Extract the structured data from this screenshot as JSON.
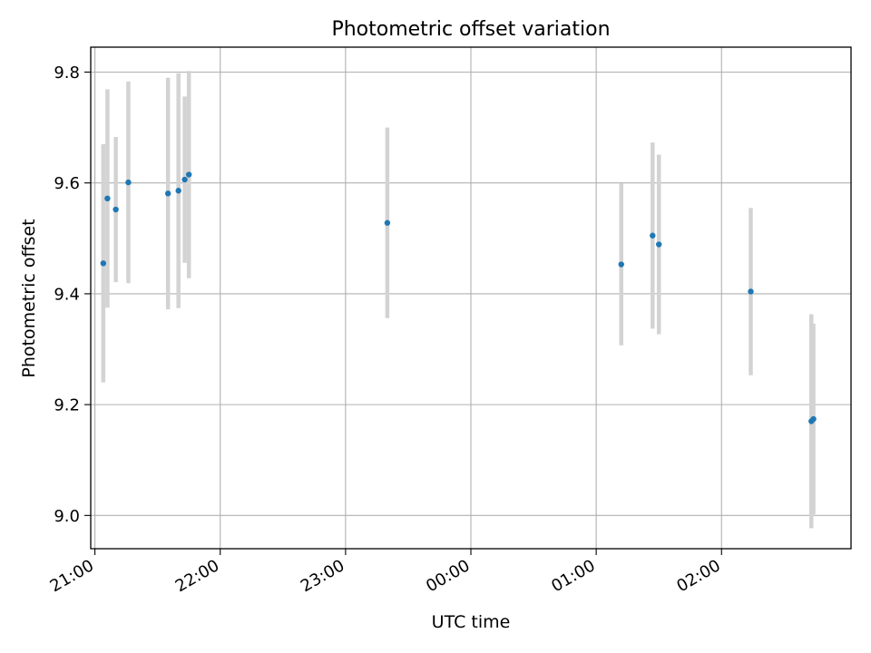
{
  "chart_data": {
    "type": "scatter",
    "title": "Photometric offset variation",
    "xlabel": "UTC time",
    "ylabel": "Photometric offset",
    "x_axis": "time",
    "xlim": [
      "20:58",
      "27:02"
    ],
    "ylim": [
      8.94,
      9.845
    ],
    "grid": true,
    "xticks": [
      {
        "t": "21:00",
        "label": "21:00"
      },
      {
        "t": "22:00",
        "label": "22:00"
      },
      {
        "t": "23:00",
        "label": "23:00"
      },
      {
        "t": "24:00",
        "label": "00:00"
      },
      {
        "t": "25:00",
        "label": "01:00"
      },
      {
        "t": "26:00",
        "label": "02:00"
      }
    ],
    "yticks": [
      9.0,
      9.2,
      9.4,
      9.6,
      9.8
    ],
    "ytick_labels": [
      "9.0",
      "9.2",
      "9.4",
      "9.6",
      "9.8"
    ],
    "points_color": "#1f77b4",
    "errorbar_color": "#d3d3d3",
    "points": [
      {
        "t": "21:04",
        "y": 9.455,
        "err": 0.215
      },
      {
        "t": "21:06",
        "y": 9.572,
        "err": 0.197
      },
      {
        "t": "21:10",
        "y": 9.552,
        "err": 0.131
      },
      {
        "t": "21:16",
        "y": 9.601,
        "err": 0.182
      },
      {
        "t": "21:35",
        "y": 9.581,
        "err": 0.209
      },
      {
        "t": "21:40",
        "y": 9.586,
        "err": 0.212
      },
      {
        "t": "21:43",
        "y": 9.606,
        "err": 0.15
      },
      {
        "t": "21:45",
        "y": 9.615,
        "err": 0.187
      },
      {
        "t": "23:20",
        "y": 9.528,
        "err": 0.172
      },
      {
        "t": "25:12",
        "y": 9.453,
        "err": 0.146
      },
      {
        "t": "25:27",
        "y": 9.505,
        "err": 0.168
      },
      {
        "t": "25:30",
        "y": 9.489,
        "err": 0.162
      },
      {
        "t": "26:14",
        "y": 9.404,
        "err": 0.151
      },
      {
        "t": "26:43",
        "y": 9.17,
        "err": 0.193
      },
      {
        "t": "26:44",
        "y": 9.174,
        "err": 0.172
      }
    ]
  }
}
